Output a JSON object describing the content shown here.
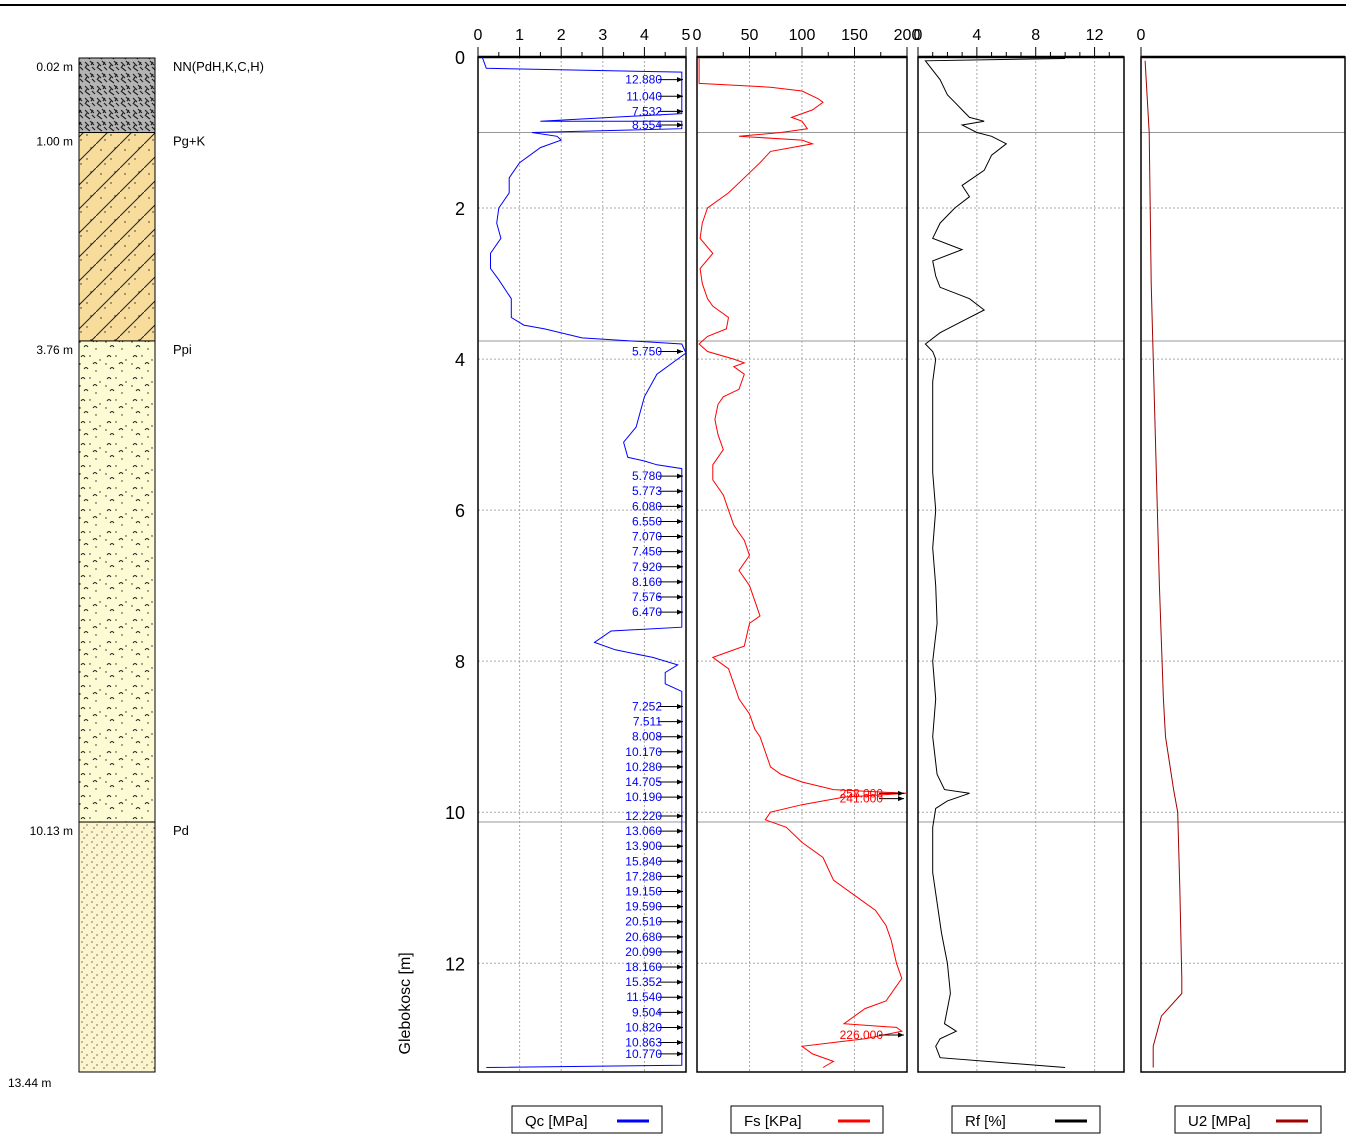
{
  "chart_data": {
    "type": "line",
    "ylabel": "Glebokosc [m]",
    "ylim": [
      0,
      13.44
    ],
    "yticks": [
      0,
      2,
      4,
      6,
      8,
      10,
      12
    ],
    "lithology": {
      "layers": [
        {
          "top": 0.02,
          "top_label": "0.02 m",
          "name": "NN(PdH,K,C,H)",
          "pattern": "fill",
          "color": "#b4b4b4"
        },
        {
          "top": 1.0,
          "top_label": "1.00 m",
          "name": "Pg+K",
          "pattern": "diagonal",
          "color": "#f8dc9c"
        },
        {
          "top": 3.76,
          "top_label": "3.76 m",
          "name": "Ppi",
          "pattern": "silt",
          "color": "#fdfbd4"
        },
        {
          "top": 10.13,
          "top_label": "10.13 m",
          "name": "Pd",
          "pattern": "dots",
          "color": "#fcf4cc"
        }
      ],
      "bottom": 13.44,
      "bottom_label": "13.44 m"
    },
    "panels": [
      {
        "name": "Qc [MPa]",
        "color": "#0000ff",
        "xlim": [
          0,
          5
        ],
        "xticks": [
          0,
          1,
          2,
          3,
          4,
          5
        ],
        "minor": 0.5,
        "series": [
          [
            0.1,
            0
          ],
          [
            0.2,
            0.15
          ],
          [
            4.9,
            0.2
          ],
          [
            4.9,
            0.75
          ],
          [
            1.5,
            0.85
          ],
          [
            4.9,
            0.85
          ],
          [
            4.9,
            0.95
          ],
          [
            1.3,
            1.0
          ],
          [
            1.9,
            1.05
          ],
          [
            2.0,
            1.1
          ],
          [
            1.5,
            1.2
          ],
          [
            1.0,
            1.4
          ],
          [
            0.75,
            1.6
          ],
          [
            0.75,
            1.8
          ],
          [
            0.5,
            2.0
          ],
          [
            0.45,
            2.2
          ],
          [
            0.55,
            2.4
          ],
          [
            0.3,
            2.6
          ],
          [
            0.3,
            2.8
          ],
          [
            0.5,
            2.95
          ],
          [
            0.8,
            3.2
          ],
          [
            0.8,
            3.45
          ],
          [
            1.1,
            3.55
          ],
          [
            1.6,
            3.6
          ],
          [
            2.5,
            3.72
          ],
          [
            4.9,
            3.8
          ],
          [
            5.0,
            3.92
          ],
          [
            4.3,
            4.2
          ],
          [
            4.0,
            4.5
          ],
          [
            3.8,
            4.9
          ],
          [
            3.5,
            5.1
          ],
          [
            3.6,
            5.3
          ],
          [
            4.0,
            5.35
          ],
          [
            4.3,
            5.4
          ],
          [
            4.9,
            5.45
          ],
          [
            4.9,
            7.55
          ],
          [
            3.2,
            7.6
          ],
          [
            2.8,
            7.75
          ],
          [
            3.3,
            7.85
          ],
          [
            4.2,
            7.95
          ],
          [
            4.8,
            8.05
          ],
          [
            4.5,
            8.15
          ],
          [
            4.5,
            8.3
          ],
          [
            4.9,
            8.4
          ],
          [
            4.9,
            13.35
          ],
          [
            0.2,
            13.38
          ]
        ],
        "callouts": [
          {
            "depth": 0.3,
            "label": "12.880"
          },
          {
            "depth": 0.52,
            "label": "11.040"
          },
          {
            "depth": 0.72,
            "label": "7.532"
          },
          {
            "depth": 0.9,
            "label": "8.554"
          },
          {
            "depth": 3.9,
            "label": "5.750"
          },
          {
            "depth": 5.55,
            "label": "5.780"
          },
          {
            "depth": 5.75,
            "label": "5.773"
          },
          {
            "depth": 5.95,
            "label": "6.080"
          },
          {
            "depth": 6.15,
            "label": "6.550"
          },
          {
            "depth": 6.35,
            "label": "7.070"
          },
          {
            "depth": 6.55,
            "label": "7.450"
          },
          {
            "depth": 6.75,
            "label": "7.920"
          },
          {
            "depth": 6.95,
            "label": "8.160"
          },
          {
            "depth": 7.15,
            "label": "7.576"
          },
          {
            "depth": 7.35,
            "label": "6.470"
          },
          {
            "depth": 8.6,
            "label": "7.252"
          },
          {
            "depth": 8.8,
            "label": "7.511"
          },
          {
            "depth": 9.0,
            "label": "8.008"
          },
          {
            "depth": 9.2,
            "label": "10.170"
          },
          {
            "depth": 9.4,
            "label": "10.280"
          },
          {
            "depth": 9.6,
            "label": "14.705"
          },
          {
            "depth": 9.8,
            "label": "10.190"
          },
          {
            "depth": 10.05,
            "label": "12.220"
          },
          {
            "depth": 10.25,
            "label": "13.060"
          },
          {
            "depth": 10.45,
            "label": "13.900"
          },
          {
            "depth": 10.65,
            "label": "15.840"
          },
          {
            "depth": 10.85,
            "label": "17.280"
          },
          {
            "depth": 11.05,
            "label": "19.150"
          },
          {
            "depth": 11.25,
            "label": "19.590"
          },
          {
            "depth": 11.45,
            "label": "20.510"
          },
          {
            "depth": 11.65,
            "label": "20.680"
          },
          {
            "depth": 11.85,
            "label": "20.090"
          },
          {
            "depth": 12.05,
            "label": "18.160"
          },
          {
            "depth": 12.25,
            "label": "15.352"
          },
          {
            "depth": 12.45,
            "label": "11.540"
          },
          {
            "depth": 12.65,
            "label": "9.504"
          },
          {
            "depth": 12.85,
            "label": "10.820"
          },
          {
            "depth": 13.05,
            "label": "10.863"
          },
          {
            "depth": 13.2,
            "label": "10.770"
          }
        ]
      },
      {
        "name": "Fs [KPa]",
        "color": "#ff0000",
        "xlim": [
          0,
          200
        ],
        "xticks": [
          0,
          50,
          100,
          150,
          200
        ],
        "minor": 25,
        "series": [
          [
            2,
            0.02
          ],
          [
            2,
            0.35
          ],
          [
            70,
            0.4
          ],
          [
            100,
            0.45
          ],
          [
            115,
            0.55
          ],
          [
            120,
            0.6
          ],
          [
            110,
            0.7
          ],
          [
            90,
            0.8
          ],
          [
            100,
            0.85
          ],
          [
            105,
            0.95
          ],
          [
            80,
            1.0
          ],
          [
            40,
            1.05
          ],
          [
            100,
            1.1
          ],
          [
            110,
            1.15
          ],
          [
            70,
            1.25
          ],
          [
            60,
            1.4
          ],
          [
            45,
            1.6
          ],
          [
            30,
            1.8
          ],
          [
            10,
            2.0
          ],
          [
            5,
            2.2
          ],
          [
            3,
            2.4
          ],
          [
            15,
            2.6
          ],
          [
            3,
            2.8
          ],
          [
            5,
            3.0
          ],
          [
            10,
            3.2
          ],
          [
            15,
            3.3
          ],
          [
            30,
            3.45
          ],
          [
            28,
            3.6
          ],
          [
            10,
            3.7
          ],
          [
            2,
            3.8
          ],
          [
            10,
            3.9
          ],
          [
            35,
            4.0
          ],
          [
            45,
            4.05
          ],
          [
            35,
            4.1
          ],
          [
            45,
            4.2
          ],
          [
            40,
            4.4
          ],
          [
            25,
            4.5
          ],
          [
            20,
            4.6
          ],
          [
            17,
            4.8
          ],
          [
            20,
            5.0
          ],
          [
            25,
            5.2
          ],
          [
            15,
            5.4
          ],
          [
            15,
            5.6
          ],
          [
            25,
            5.8
          ],
          [
            30,
            6.0
          ],
          [
            35,
            6.2
          ],
          [
            45,
            6.4
          ],
          [
            50,
            6.6
          ],
          [
            40,
            6.8
          ],
          [
            50,
            7.0
          ],
          [
            55,
            7.2
          ],
          [
            60,
            7.4
          ],
          [
            50,
            7.5
          ],
          [
            45,
            7.8
          ],
          [
            25,
            7.9
          ],
          [
            15,
            7.95
          ],
          [
            20,
            8.0
          ],
          [
            30,
            8.1
          ],
          [
            35,
            8.3
          ],
          [
            40,
            8.5
          ],
          [
            50,
            8.7
          ],
          [
            55,
            8.9
          ],
          [
            60,
            9.0
          ],
          [
            65,
            9.2
          ],
          [
            70,
            9.4
          ],
          [
            80,
            9.5
          ],
          [
            100,
            9.6
          ],
          [
            130,
            9.7
          ],
          [
            200,
            9.75
          ],
          [
            140,
            9.8
          ],
          [
            100,
            9.9
          ],
          [
            70,
            10.0
          ],
          [
            65,
            10.1
          ],
          [
            85,
            10.2
          ],
          [
            100,
            10.4
          ],
          [
            120,
            10.6
          ],
          [
            130,
            10.9
          ],
          [
            150,
            11.1
          ],
          [
            170,
            11.3
          ],
          [
            180,
            11.5
          ],
          [
            185,
            11.7
          ],
          [
            190,
            12.0
          ],
          [
            195,
            12.2
          ],
          [
            180,
            12.5
          ],
          [
            160,
            12.6
          ],
          [
            140,
            12.8
          ],
          [
            190,
            12.85
          ],
          [
            195,
            12.9
          ],
          [
            160,
            13.0
          ],
          [
            130,
            13.05
          ],
          [
            100,
            13.1
          ],
          [
            110,
            13.2
          ],
          [
            130,
            13.3
          ],
          [
            120,
            13.38
          ]
        ],
        "callouts": [
          {
            "depth": 9.75,
            "label": "258.000"
          },
          {
            "depth": 9.82,
            "label": "241.000"
          },
          {
            "depth": 12.95,
            "label": "226.000"
          }
        ]
      },
      {
        "name": "Rf [%]",
        "color": "#000000",
        "xlim": [
          0,
          14
        ],
        "xticks": [
          0,
          4,
          8,
          12
        ],
        "minor": 1,
        "series": [
          [
            10,
            0.02
          ],
          [
            0.5,
            0.05
          ],
          [
            1.5,
            0.3
          ],
          [
            2,
            0.5
          ],
          [
            2.5,
            0.6
          ],
          [
            3,
            0.7
          ],
          [
            3.5,
            0.8
          ],
          [
            4.5,
            0.85
          ],
          [
            3,
            0.9
          ],
          [
            4,
            1.0
          ],
          [
            5,
            1.05
          ],
          [
            6,
            1.15
          ],
          [
            5,
            1.3
          ],
          [
            4.5,
            1.5
          ],
          [
            3,
            1.7
          ],
          [
            3.5,
            1.85
          ],
          [
            2.5,
            2.0
          ],
          [
            1.5,
            2.2
          ],
          [
            1,
            2.4
          ],
          [
            3,
            2.55
          ],
          [
            1,
            2.7
          ],
          [
            1.2,
            2.9
          ],
          [
            1.5,
            3.05
          ],
          [
            3.5,
            3.2
          ],
          [
            4.5,
            3.35
          ],
          [
            3,
            3.5
          ],
          [
            1.5,
            3.65
          ],
          [
            0.5,
            3.8
          ],
          [
            1,
            3.9
          ],
          [
            1.2,
            4.0
          ],
          [
            1,
            4.3
          ],
          [
            1,
            5.0
          ],
          [
            1,
            5.5
          ],
          [
            1.2,
            6.0
          ],
          [
            1,
            6.5
          ],
          [
            1.2,
            7.0
          ],
          [
            1.3,
            7.5
          ],
          [
            1,
            8.0
          ],
          [
            1.2,
            8.5
          ],
          [
            1,
            9.0
          ],
          [
            1.3,
            9.5
          ],
          [
            1.8,
            9.7
          ],
          [
            3.5,
            9.75
          ],
          [
            2,
            9.85
          ],
          [
            1.2,
            9.95
          ],
          [
            1,
            10.2
          ],
          [
            1,
            10.8
          ],
          [
            1.3,
            11.2
          ],
          [
            1.6,
            11.6
          ],
          [
            2,
            12.0
          ],
          [
            2.2,
            12.4
          ],
          [
            1.8,
            12.8
          ],
          [
            2.6,
            12.9
          ],
          [
            1.5,
            13.0
          ],
          [
            1.2,
            13.1
          ],
          [
            1.5,
            13.25
          ],
          [
            10,
            13.38
          ]
        ],
        "callouts": []
      },
      {
        "name": "U2 [MPa]",
        "color": "#a00000",
        "xlim": [
          0,
          1
        ],
        "xticks": [
          0
        ],
        "minor": null,
        "series": [
          [
            0.02,
            0.05
          ],
          [
            0.04,
            1.0
          ],
          [
            0.05,
            3.0
          ],
          [
            0.07,
            5.0
          ],
          [
            0.09,
            7.0
          ],
          [
            0.11,
            8.5
          ],
          [
            0.12,
            9.0
          ],
          [
            0.16,
            9.7
          ],
          [
            0.18,
            10.0
          ],
          [
            0.19,
            11.0
          ],
          [
            0.2,
            12.2
          ],
          [
            0.2,
            12.4
          ],
          [
            0.1,
            12.7
          ],
          [
            0.08,
            12.9
          ],
          [
            0.06,
            13.1
          ],
          [
            0.06,
            13.38
          ]
        ],
        "callouts": []
      }
    ]
  }
}
